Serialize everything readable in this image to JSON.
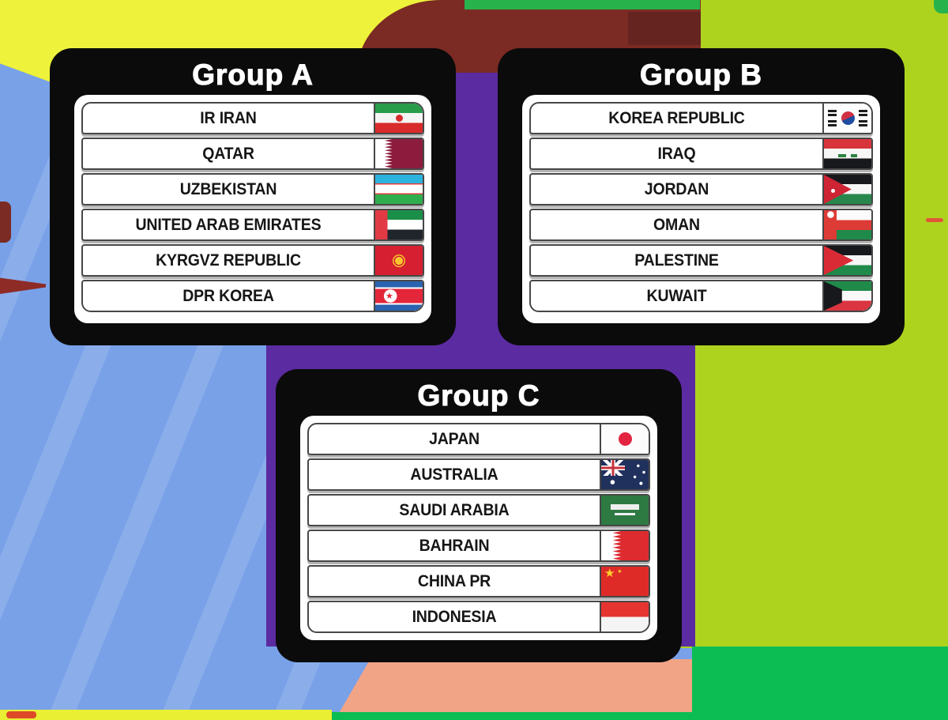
{
  "groups": [
    {
      "label": "Group A",
      "teams": [
        {
          "name": "IR IRAN",
          "flag": "iran"
        },
        {
          "name": "QATAR",
          "flag": "qatar"
        },
        {
          "name": "UZBEKISTAN",
          "flag": "uzbekistan"
        },
        {
          "name": "UNITED ARAB EMIRATES",
          "flag": "uae"
        },
        {
          "name": "KYRGVZ REPUBLIC",
          "flag": "kyrgyzstan"
        },
        {
          "name": "DPR KOREA",
          "flag": "dpr-korea"
        }
      ]
    },
    {
      "label": "Group B",
      "teams": [
        {
          "name": "KOREA REPUBLIC",
          "flag": "korea-republic"
        },
        {
          "name": "IRAQ",
          "flag": "iraq"
        },
        {
          "name": "JORDAN",
          "flag": "jordan"
        },
        {
          "name": "OMAN",
          "flag": "oman"
        },
        {
          "name": "PALESTINE",
          "flag": "palestine"
        },
        {
          "name": "KUWAIT",
          "flag": "kuwait"
        }
      ]
    },
    {
      "label": "Group C",
      "teams": [
        {
          "name": "JAPAN",
          "flag": "japan"
        },
        {
          "name": "AUSTRALIA",
          "flag": "australia"
        },
        {
          "name": "SAUDI ARABIA",
          "flag": "saudi-arabia"
        },
        {
          "name": "BAHRAIN",
          "flag": "bahrain"
        },
        {
          "name": "CHINA PR",
          "flag": "china"
        },
        {
          "name": "INDONESIA",
          "flag": "indonesia"
        }
      ]
    }
  ],
  "colors": {
    "panel_black": "#0b0b0b",
    "card_white": "#fefefe",
    "background_blue": "#78a1e8",
    "background_purple": "#5b2ba1",
    "background_lime": "#aed31f",
    "background_green": "#0cbd53",
    "background_yellow": "#eef23b",
    "background_maroon": "#7b2b23",
    "background_salmon": "#f2a487"
  }
}
